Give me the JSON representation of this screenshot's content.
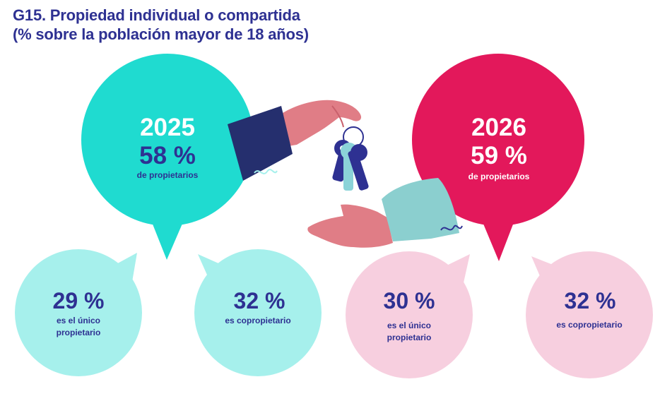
{
  "title": {
    "line1": "G15. Propiedad individual o compartida",
    "line2": "(% sobre la población mayor de 18 años)"
  },
  "colors": {
    "title": "#2e3192",
    "teal": "#1fdbd0",
    "teal_light": "#a6f0ec",
    "crimson": "#e3185b",
    "pink_light": "#f7cfdf",
    "navy": "#2e3192",
    "white": "#ffffff"
  },
  "chart_data": {
    "type": "table",
    "title": "G15. Propiedad individual o compartida",
    "subtitle": "(% sobre la población mayor de 18 años)",
    "unit": "%",
    "groups": [
      {
        "year": "2025",
        "value": 58,
        "value_label": "58 %",
        "caption": "de propietarios",
        "breakdown": [
          {
            "value": 29,
            "value_label": "29 %",
            "caption_lines": [
              "es el único",
              "propietario"
            ]
          },
          {
            "value": 32,
            "value_label": "32 %",
            "caption_lines": [
              "es copropietario"
            ]
          }
        ]
      },
      {
        "year": "2026",
        "value": 59,
        "value_label": "59 %",
        "caption": "de propietarios",
        "breakdown": [
          {
            "value": 30,
            "value_label": "30 %",
            "caption_lines": [
              "es el único",
              "propietario"
            ]
          },
          {
            "value": 32,
            "value_label": "32 %",
            "caption_lines": [
              "es copropietario"
            ]
          }
        ]
      }
    ]
  }
}
